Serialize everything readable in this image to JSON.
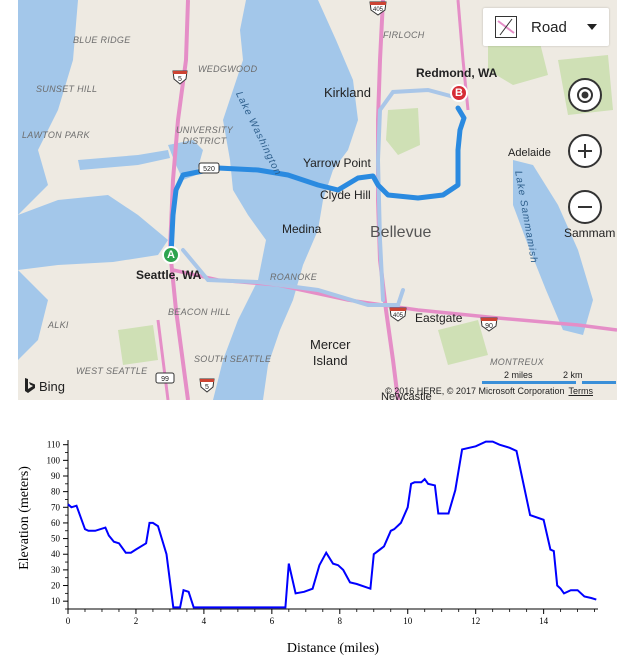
{
  "map": {
    "labels": {
      "blue_ridge": "BLUE RIDGE",
      "wedgwood": "WEDGWOOD",
      "firloch": "FIRLOCH",
      "sunset_hill": "SUNSET HILL",
      "lawton_park": "LAWTON PARK",
      "university_district": "UNIVERSITY\nDISTRICT",
      "roanoke": "ROANOKE",
      "beacon_hill": "BEACON HILL",
      "alki": "ALKI",
      "south_seattle": "SOUTH SEATTLE",
      "west_seattle": "WEST SEATTLE",
      "montreux": "MONTREUX",
      "kirkland": "Kirkland",
      "redmond": "Redmond, WA",
      "yarrow_point": "Yarrow Point",
      "clyde_hill": "Clyde Hill",
      "adelaide": "Adelaide",
      "medina": "Medina",
      "bellevue": "Bellevue",
      "sammamish": "Sammam",
      "seattle": "Seattle, WA",
      "eastgate": "Eastgate",
      "mercer_island": "Mercer\nIsland",
      "newcastle": "Newcastle",
      "lake_washington": "Lake Washington",
      "lake_sammamish": "Lake Sammamish"
    },
    "shields": {
      "i405_top": "405",
      "i5_north": "5",
      "sr520": "520",
      "i405_south": "405",
      "i90": "90",
      "sr99": "99",
      "i5_south": "5"
    },
    "markers": {
      "start": "A",
      "end": "B"
    },
    "style_control": {
      "label": "Road",
      "icon": "map-style-icon"
    },
    "zoom_icons": [
      "locate-icon",
      "zoom-in-icon",
      "zoom-out-icon"
    ],
    "scale": {
      "miles": "2 miles",
      "km": "2 km"
    },
    "attribution": "© 2016 HERE, © 2017 Microsoft Corporation",
    "terms": "Terms",
    "brand": "Bing",
    "colors": {
      "water": "#a3c7ea",
      "land": "#eeeae2",
      "park": "#cfe0b5",
      "route": "#2a8ae0",
      "marker_a": "#2ea44f",
      "marker_b": "#d62c36"
    }
  },
  "chart_data": {
    "type": "line",
    "xlabel": "Distance (miles)",
    "ylabel": "Elevation (meters)",
    "xlim": [
      0,
      15.6
    ],
    "ylim": [
      5,
      113
    ],
    "xticks": [
      0,
      2,
      4,
      6,
      8,
      10,
      12,
      14
    ],
    "yticks": [
      10,
      20,
      30,
      40,
      50,
      60,
      70,
      80,
      90,
      100,
      110
    ],
    "color": "#0000ff",
    "series": [
      {
        "x": [
          0,
          0.1,
          0.25,
          0.4,
          0.5,
          0.6,
          0.8,
          1.1,
          1.2,
          1.35,
          1.5,
          1.7,
          1.85,
          2.0,
          2.3,
          2.4,
          2.5,
          2.65,
          2.9,
          3.1,
          3.3,
          3.4,
          3.55,
          3.7,
          4.0,
          5.0,
          6.0,
          6.4,
          6.5,
          6.7,
          6.95,
          7.2,
          7.4,
          7.6,
          7.8,
          7.95,
          8.1,
          8.3,
          8.5,
          8.9,
          9.0,
          9.3,
          9.5,
          9.6,
          9.8,
          10.0,
          10.1,
          10.2,
          10.4,
          10.5,
          10.6,
          10.8,
          10.9,
          11.2,
          11.4,
          11.6,
          12.0,
          12.3,
          12.5,
          12.7,
          13.0,
          13.2,
          13.6,
          14.0,
          14.2,
          14.3,
          14.4,
          14.5,
          14.6,
          14.8,
          15.0,
          15.2,
          15.4,
          15.55
        ],
        "y": [
          72,
          70,
          71,
          62,
          56,
          55,
          55,
          57,
          52,
          48,
          47,
          41,
          41,
          43,
          47,
          60,
          60,
          58,
          40,
          6,
          6,
          17,
          16,
          6,
          6,
          6,
          6,
          6,
          34,
          15,
          16,
          18,
          33,
          41,
          34,
          33,
          30,
          22,
          21,
          18,
          40,
          45,
          55,
          56,
          60,
          70,
          85,
          86,
          86,
          88,
          85,
          84,
          66,
          66,
          81,
          107,
          109,
          112,
          112,
          110,
          108,
          106,
          65,
          62,
          43,
          42,
          20,
          18,
          15,
          17,
          17,
          13,
          12,
          11
        ]
      }
    ]
  }
}
